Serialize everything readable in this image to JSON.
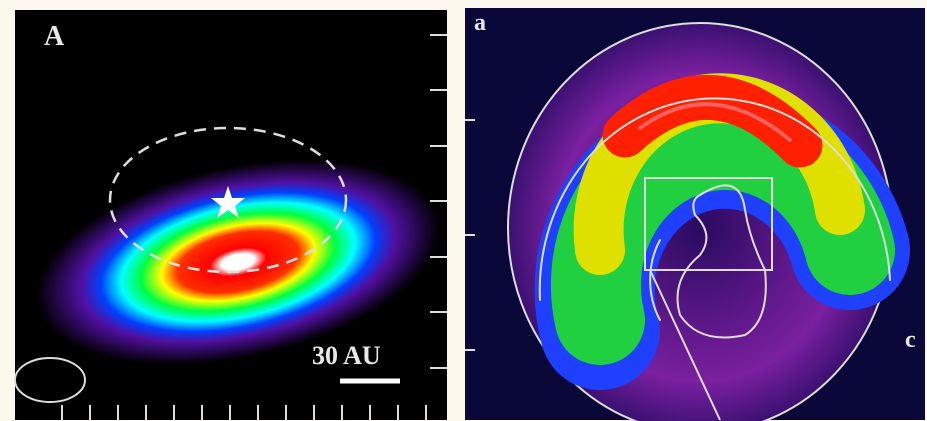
{
  "panels": [
    {
      "label": "A",
      "scale_bar": "30 AU"
    },
    {
      "label": "a",
      "corner_label": "c"
    }
  ]
}
